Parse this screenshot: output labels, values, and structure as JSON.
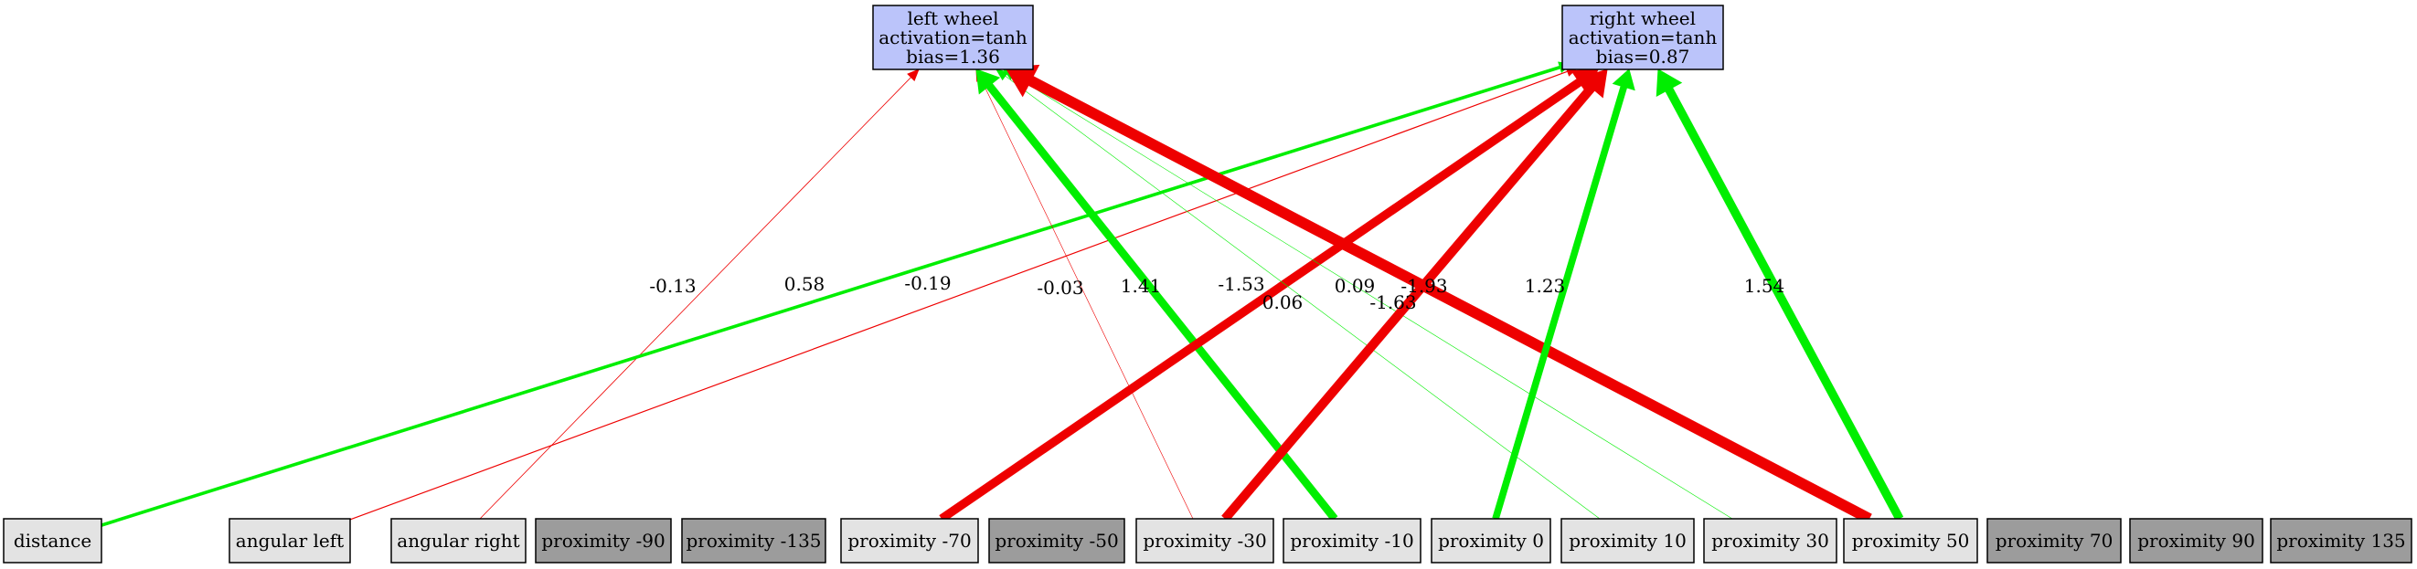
{
  "colors": {
    "output_fill": "#bbc4fa",
    "input_used_fill": "#e3e3e3",
    "input_unused_fill": "#9c9c9c",
    "border": "#000000",
    "positive_edge": "#00ee00",
    "negative_edge": "#ee0000"
  },
  "outputs": [
    {
      "id": "left_wheel",
      "lines": [
        "left wheel",
        "activation=tanh",
        "bias=1.36"
      ]
    },
    {
      "id": "right_wheel",
      "lines": [
        "right wheel",
        "activation=tanh",
        "bias=0.87"
      ]
    }
  ],
  "inputs": [
    {
      "id": "distance",
      "label": "distance",
      "used": true
    },
    {
      "id": "angular_left",
      "label": "angular left",
      "used": true
    },
    {
      "id": "angular_right",
      "label": "angular right",
      "used": true
    },
    {
      "id": "prox_m90",
      "label": "proximity -90",
      "used": false
    },
    {
      "id": "prox_m135",
      "label": "proximity -135",
      "used": false
    },
    {
      "id": "prox_m70",
      "label": "proximity -70",
      "used": true
    },
    {
      "id": "prox_m50",
      "label": "proximity -50",
      "used": false
    },
    {
      "id": "prox_m30",
      "label": "proximity -30",
      "used": true
    },
    {
      "id": "prox_m10",
      "label": "proximity -10",
      "used": true
    },
    {
      "id": "prox_0",
      "label": "proximity 0",
      "used": true
    },
    {
      "id": "prox_10",
      "label": "proximity 10",
      "used": true
    },
    {
      "id": "prox_30",
      "label": "proximity 30",
      "used": true
    },
    {
      "id": "prox_50",
      "label": "proximity 50",
      "used": true
    },
    {
      "id": "prox_70",
      "label": "proximity 70",
      "used": false
    },
    {
      "id": "prox_90",
      "label": "proximity 90",
      "used": false
    },
    {
      "id": "prox_135",
      "label": "proximity 135",
      "used": false
    }
  ],
  "edges": [
    {
      "from": "angular_right",
      "to": "left_wheel",
      "weight": -0.13,
      "label": "-0.13"
    },
    {
      "from": "distance",
      "to": "right_wheel",
      "weight": 0.58,
      "label": "0.58"
    },
    {
      "from": "angular_left",
      "to": "right_wheel",
      "weight": -0.19,
      "label": "-0.19"
    },
    {
      "from": "prox_m30",
      "to": "left_wheel",
      "weight": -0.03,
      "label": "-0.03"
    },
    {
      "from": "prox_m10",
      "to": "left_wheel",
      "weight": 1.41,
      "label": "1.41"
    },
    {
      "from": "prox_m70",
      "to": "right_wheel",
      "weight": -1.53,
      "label": "-1.53"
    },
    {
      "from": "prox_10",
      "to": "left_wheel",
      "weight": 0.06,
      "label": "0.06"
    },
    {
      "from": "prox_30",
      "to": "left_wheel",
      "weight": 0.09,
      "label": "0.09"
    },
    {
      "from": "prox_50",
      "to": "left_wheel",
      "weight": -1.93,
      "label": "-1.93"
    },
    {
      "from": "prox_m30",
      "to": "right_wheel",
      "weight": -1.63,
      "label": "-1.63"
    },
    {
      "from": "prox_0",
      "to": "right_wheel",
      "weight": 1.23,
      "label": "1.23"
    },
    {
      "from": "prox_50",
      "to": "right_wheel",
      "weight": 1.54,
      "label": "1.54"
    }
  ]
}
